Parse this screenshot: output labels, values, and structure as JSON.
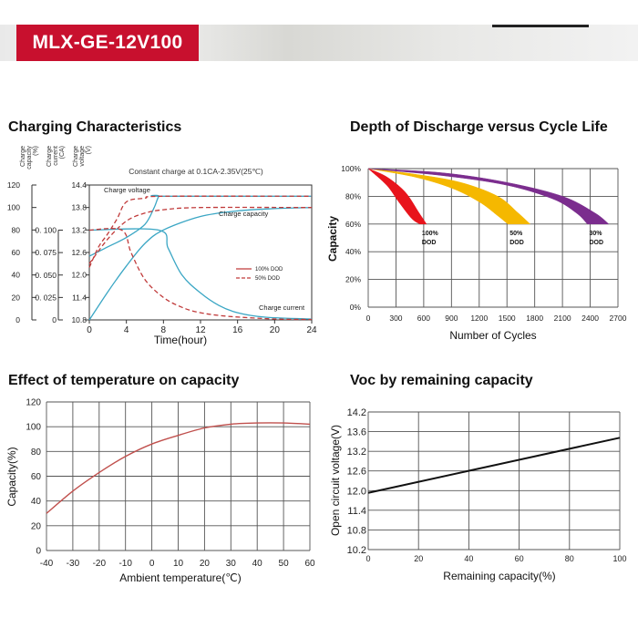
{
  "header": {
    "model": "MLX-GE-12V100"
  },
  "sections": {
    "charging": "Charging Characteristics",
    "dod": "Depth of Discharge versus Cycle Life",
    "temperature": "Effect of temperature on capacity",
    "voc": "Voc by remaining capacity"
  },
  "colors": {
    "brand": "#c8102e",
    "teal": "#3aa6c4",
    "dod_red": "#c03a3a",
    "cap_red": "#c0504d",
    "dod100": "#e8141c",
    "dod50": "#f5b800",
    "dod30": "#7b2d8e"
  },
  "chart_data": [
    {
      "id": "charging",
      "type": "line",
      "title": "Constant charge at 0.1CA-2.35V(25℃)",
      "xlabel": "Time(hour)",
      "xlim": [
        0,
        24
      ],
      "x_ticks": [
        "0",
        "4",
        "8",
        "12",
        "16",
        "20",
        "24"
      ],
      "axes": {
        "capacity": {
          "label": [
            "Charge",
            "capacity",
            "(%)"
          ],
          "ticks": [
            "120",
            "100",
            "80",
            "60",
            "40",
            "20",
            "0"
          ]
        },
        "current": {
          "label": [
            "Charge",
            "current",
            "(CA)"
          ],
          "ticks": [
            "0. 100",
            "0. 075",
            "0. 050",
            "0. 025",
            "0"
          ]
        },
        "voltage": {
          "label": [
            "Charge",
            "voltage",
            "(V)"
          ],
          "ticks": [
            "14.4",
            "13.8",
            "13.2",
            "12.6",
            "12.0",
            "11.4",
            "10.8"
          ]
        }
      },
      "curve_labels": [
        "Charge voltage",
        "Charge capacity",
        "Charge current"
      ],
      "legend": [
        "100% DOD",
        "50% DOD"
      ],
      "series": [
        {
          "name": "Charge voltage (100% DOD)",
          "unit": "V",
          "style": "solid",
          "x": [
            0,
            2,
            4,
            6,
            7,
            7.5,
            8,
            24
          ],
          "values": [
            12.5,
            12.75,
            13.0,
            13.35,
            13.8,
            14.1,
            14.1,
            14.1
          ]
        },
        {
          "name": "Charge voltage (50% DOD)",
          "unit": "V",
          "style": "dashed",
          "x": [
            0,
            1,
            2,
            3,
            4,
            6,
            8,
            24
          ],
          "values": [
            12.2,
            12.75,
            13.1,
            13.5,
            13.95,
            14.05,
            14.1,
            14.1
          ]
        },
        {
          "name": "Charge capacity (100% DOD)",
          "unit": "%",
          "style": "solid",
          "x": [
            0,
            2,
            4,
            6,
            8,
            12,
            16,
            20,
            24
          ],
          "values": [
            0,
            25,
            48,
            68,
            80,
            92,
            97,
            99,
            100
          ]
        },
        {
          "name": "Charge capacity (50% DOD)",
          "unit": "%",
          "style": "dashed",
          "x": [
            0,
            2,
            4,
            6,
            8,
            12,
            24
          ],
          "values": [
            50,
            72,
            88,
            95,
            98,
            100,
            100
          ]
        },
        {
          "name": "Charge current (100% DOD)",
          "unit": "CA",
          "style": "solid",
          "x": [
            0,
            7.5,
            8.5,
            10,
            12,
            14,
            16,
            19,
            24
          ],
          "values": [
            0.1,
            0.1,
            0.08,
            0.05,
            0.03,
            0.016,
            0.008,
            0.003,
            0.001
          ]
        },
        {
          "name": "Charge current (50% DOD)",
          "unit": "CA",
          "style": "dashed",
          "x": [
            0,
            3.5,
            4.5,
            6,
            8,
            10,
            12,
            15,
            20,
            24
          ],
          "values": [
            0.1,
            0.1,
            0.075,
            0.045,
            0.025,
            0.014,
            0.008,
            0.004,
            0.001,
            0.0005
          ]
        }
      ]
    },
    {
      "id": "dod",
      "type": "area",
      "title": "Depth of Discharge versus Cycle Life",
      "xlabel": "Number of Cycles",
      "ylabel": "Capacity",
      "xlim": [
        0,
        2700
      ],
      "ylim": [
        0,
        100
      ],
      "x_ticks": [
        "0",
        "300",
        "600",
        "900",
        "1200",
        "1500",
        "1800",
        "2100",
        "2400",
        "2700"
      ],
      "y_ticks": [
        "100%",
        "80%",
        "60%",
        "40%",
        "20%",
        "0%"
      ],
      "series": [
        {
          "name": "100% DOD",
          "label": [
            "100%",
            "DOD"
          ],
          "color": "#e8141c",
          "upper": {
            "x": [
              0,
              200,
              400,
              550,
              630
            ],
            "values": [
              100,
              94,
              83,
              68,
              60
            ]
          },
          "lower": {
            "x": [
              0,
              200,
              330,
              470,
              560
            ],
            "values": [
              100,
              88,
              76,
              64,
              60
            ]
          }
        },
        {
          "name": "50% DOD",
          "label": [
            "50%",
            "DOD"
          ],
          "color": "#f5b800",
          "upper": {
            "x": [
              0,
              500,
              1000,
              1400,
              1620,
              1750
            ],
            "values": [
              100,
              96,
              90,
              80,
              68,
              60
            ]
          },
          "lower": {
            "x": [
              0,
              500,
              900,
              1200,
              1400,
              1510
            ],
            "values": [
              100,
              94,
              86,
              76,
              66,
              60
            ]
          }
        },
        {
          "name": "30% DOD",
          "label": [
            "30%",
            "DOD"
          ],
          "color": "#7b2d8e",
          "upper": {
            "x": [
              0,
              800,
              1500,
              2100,
              2450,
              2600
            ],
            "values": [
              100,
              97,
              90,
              80,
              68,
              60
            ]
          },
          "lower": {
            "x": [
              0,
              800,
              1500,
              2000,
              2250,
              2370
            ],
            "values": [
              100,
              95,
              88,
              78,
              68,
              60
            ]
          }
        }
      ]
    },
    {
      "id": "temperature",
      "type": "line",
      "title": "Effect of temperature on capacity",
      "xlabel": "Ambient temperature(℃)",
      "ylabel": "Capacity(%)",
      "xlim": [
        -40,
        60
      ],
      "ylim": [
        0,
        120
      ],
      "x_ticks": [
        "-40",
        "-30",
        "-20",
        "-10",
        "0",
        "10",
        "20",
        "30",
        "40",
        "50",
        "60"
      ],
      "y_ticks": [
        "120",
        "100",
        "80",
        "60",
        "40",
        "20",
        "0"
      ],
      "series": [
        {
          "name": "Capacity",
          "color": "#c0504d",
          "x": [
            -40,
            -30,
            -20,
            -10,
            0,
            10,
            20,
            30,
            40,
            50,
            60
          ],
          "values": [
            30,
            48,
            63,
            76,
            86,
            93,
            99,
            102,
            103,
            103,
            102
          ]
        }
      ]
    },
    {
      "id": "voc",
      "type": "line",
      "title": "Voc by remaining capacity",
      "xlabel": "Remaining capacity(%)",
      "ylabel": "Open circuit voltage(V)",
      "xlim": [
        0,
        100
      ],
      "ylim": [
        10.2,
        14.2
      ],
      "x_ticks": [
        "0",
        "20",
        "40",
        "60",
        "80",
        "100"
      ],
      "y_ticks": [
        "14.2",
        "13.6",
        "13.2",
        "12.6",
        "12.0",
        "11.4",
        "10.8",
        "10.2"
      ],
      "series": [
        {
          "name": "Voc",
          "color": "#111111",
          "x": [
            0,
            100
          ],
          "values": [
            11.85,
            13.45
          ]
        }
      ]
    }
  ]
}
